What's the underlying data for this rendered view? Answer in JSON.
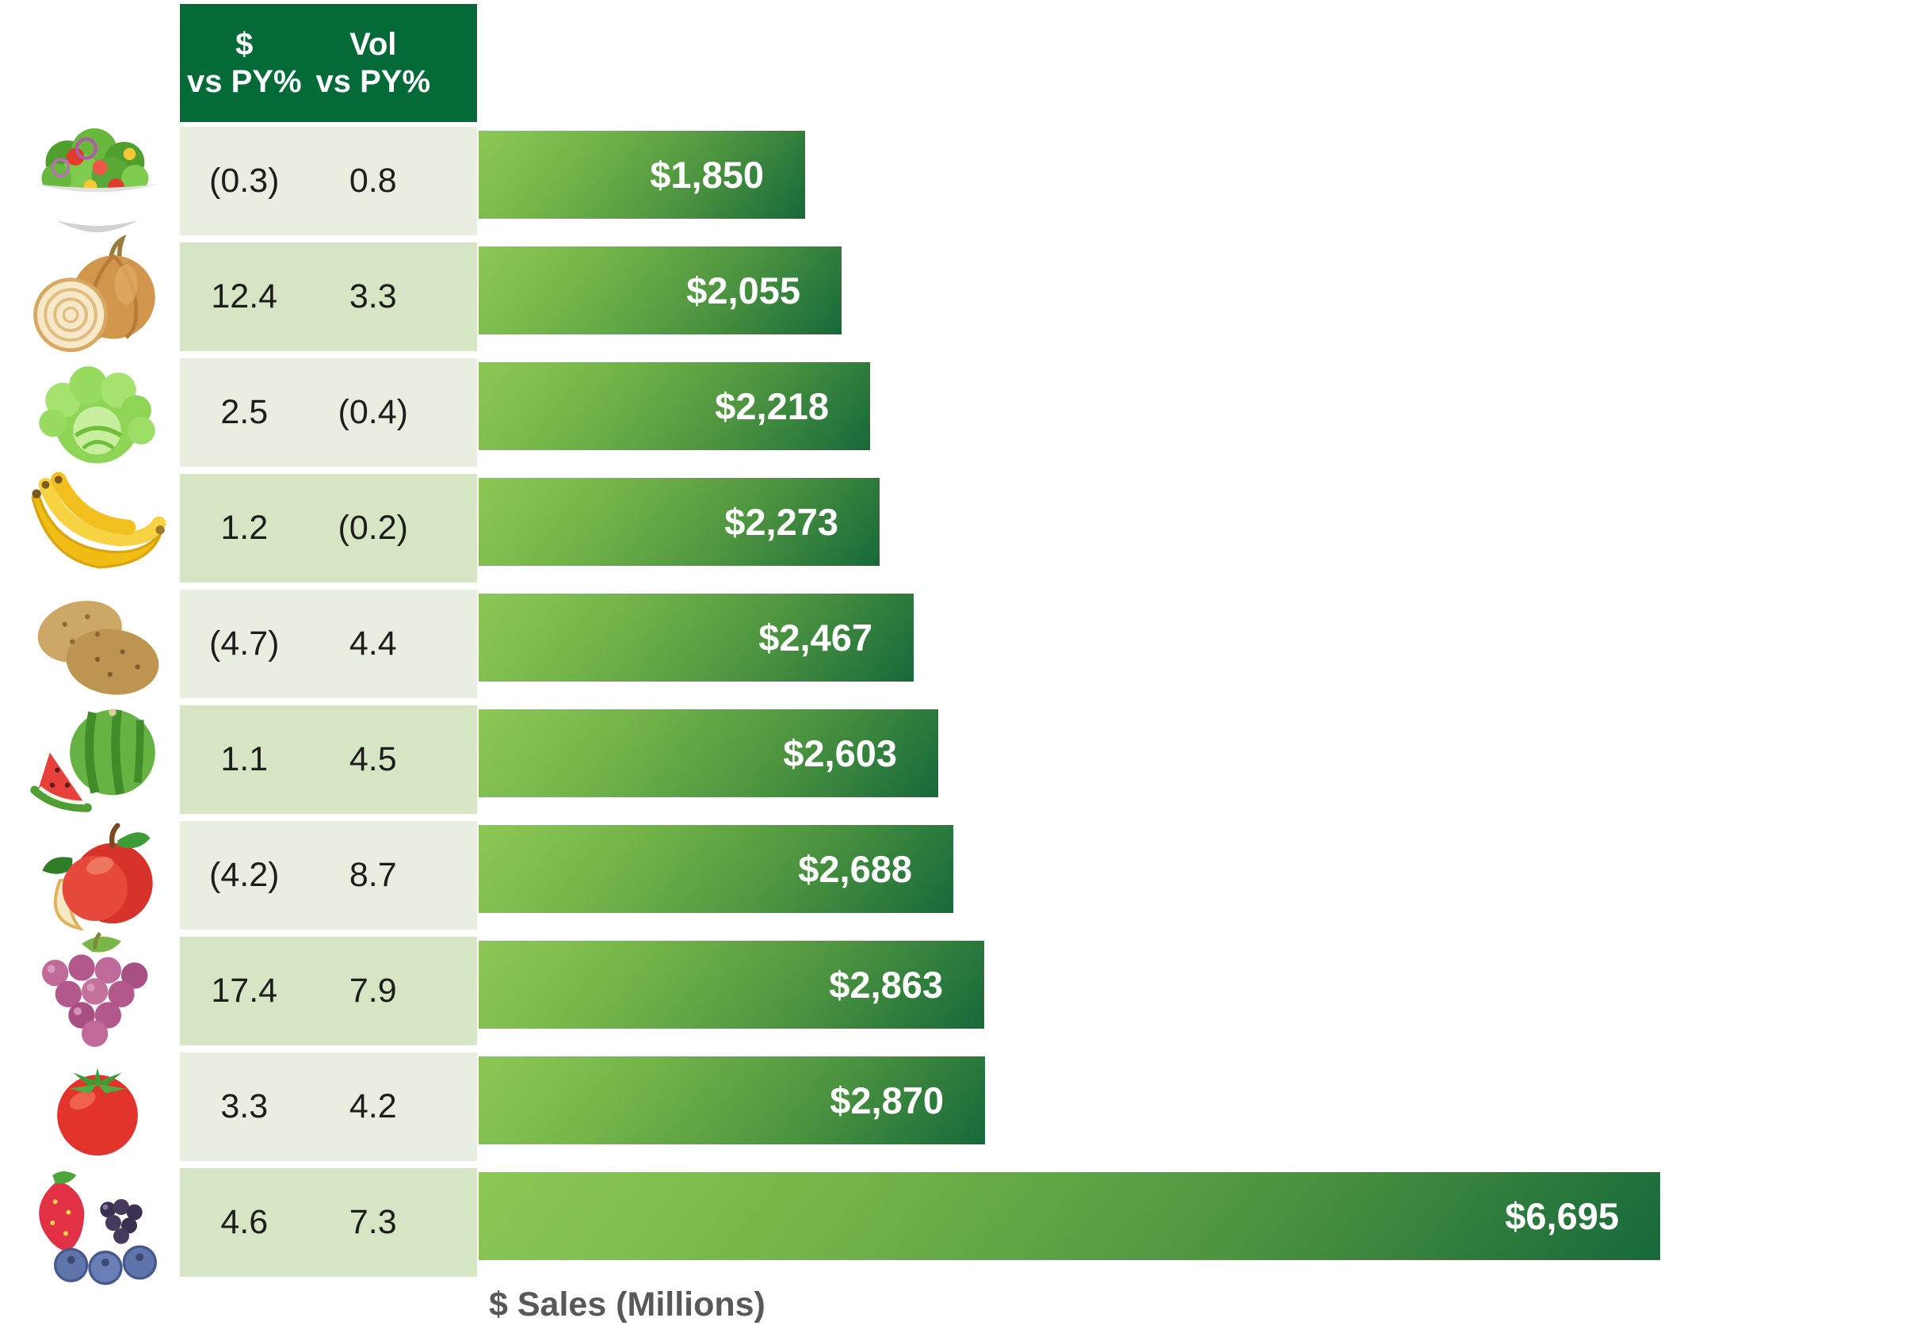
{
  "table": {
    "header_col1_line1": "$",
    "header_col1_line2": "vs PY%",
    "header_col2_line1": "Vol",
    "header_col2_line2": "vs PY%"
  },
  "axis_label": "$ Sales (Millions)",
  "rows": [
    {
      "icon": "salad-bowl",
      "dollar_vs_py": "(0.3)",
      "vol_vs_py": "0.8",
      "sales_label": "$1,850",
      "sales_value": 1850
    },
    {
      "icon": "onion",
      "dollar_vs_py": "12.4",
      "vol_vs_py": "3.3",
      "sales_label": "$2,055",
      "sales_value": 2055
    },
    {
      "icon": "lettuce",
      "dollar_vs_py": "2.5",
      "vol_vs_py": "(0.4)",
      "sales_label": "$2,218",
      "sales_value": 2218
    },
    {
      "icon": "bananas",
      "dollar_vs_py": "1.2",
      "vol_vs_py": "(0.2)",
      "sales_label": "$2,273",
      "sales_value": 2273
    },
    {
      "icon": "potatoes",
      "dollar_vs_py": "(4.7)",
      "vol_vs_py": "4.4",
      "sales_label": "$2,467",
      "sales_value": 2467
    },
    {
      "icon": "watermelon",
      "dollar_vs_py": "1.1",
      "vol_vs_py": "4.5",
      "sales_label": "$2,603",
      "sales_value": 2603
    },
    {
      "icon": "apple",
      "dollar_vs_py": "(4.2)",
      "vol_vs_py": "8.7",
      "sales_label": "$2,688",
      "sales_value": 2688
    },
    {
      "icon": "grapes",
      "dollar_vs_py": "17.4",
      "vol_vs_py": "7.9",
      "sales_label": "$2,863",
      "sales_value": 2863
    },
    {
      "icon": "tomato",
      "dollar_vs_py": "3.3",
      "vol_vs_py": "4.2",
      "sales_label": "$2,870",
      "sales_value": 2870
    },
    {
      "icon": "berries",
      "dollar_vs_py": "4.6",
      "vol_vs_py": "7.3",
      "sales_label": "$6,695",
      "sales_value": 6695
    }
  ],
  "chart_data": {
    "type": "bar",
    "orientation": "horizontal",
    "title": "",
    "xlabel": "$ Sales (Millions)",
    "ylabel": "",
    "categories": [
      "Salad",
      "Onions",
      "Lettuce",
      "Bananas",
      "Potatoes",
      "Watermelon",
      "Apples",
      "Grapes",
      "Tomatoes",
      "Berries"
    ],
    "values": [
      1850,
      2055,
      2218,
      2273,
      2467,
      2603,
      2688,
      2863,
      2870,
      6695
    ],
    "bar_labels": [
      "$1,850",
      "$2,055",
      "$2,218",
      "$2,273",
      "$2,467",
      "$2,603",
      "$2,688",
      "$2,863",
      "$2,870",
      "$6,695"
    ],
    "extra_columns": {
      "dollar_vs_py_pct": [
        "(0.3)",
        "12.4",
        "2.5",
        "1.2",
        "(4.7)",
        "1.1",
        "(4.2)",
        "17.4",
        "3.3",
        "4.6"
      ],
      "vol_vs_py_pct": [
        "0.8",
        "3.3",
        "(0.4)",
        "(0.2)",
        "4.4",
        "4.5",
        "8.7",
        "7.9",
        "4.2",
        "7.3"
      ]
    },
    "xlim": [
      0,
      6695
    ],
    "grid": false,
    "legend": false
  },
  "colors": {
    "header_bg": "#046a38",
    "row_bg_odd": "#e8efe1",
    "row_bg_even": "#d6e6c5",
    "bar_gradient_start": "#8dc856",
    "bar_gradient_end": "#16693a",
    "bar_label_text": "#ffffff",
    "cell_text": "#1d1d1b",
    "axis_label_text": "#58595b"
  }
}
